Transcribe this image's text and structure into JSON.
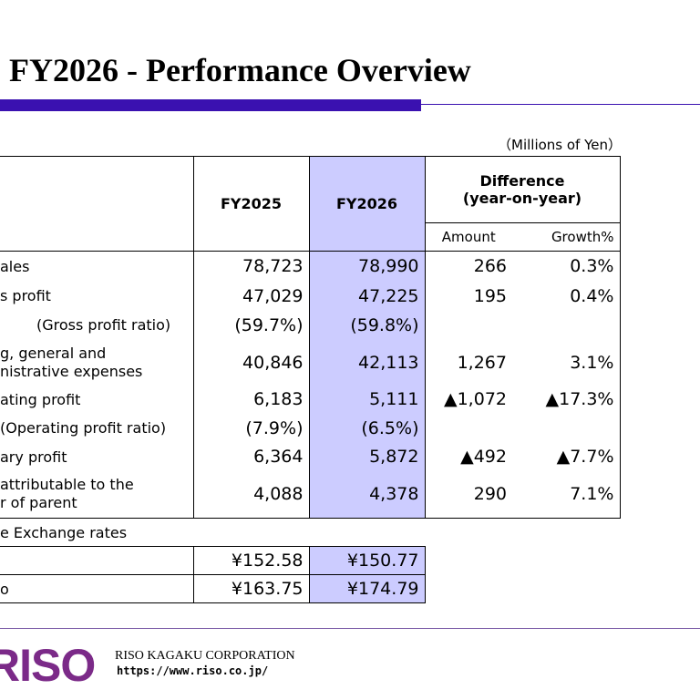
{
  "title": "FY2026 - Performance Overview",
  "units": "（Millions of Yen）",
  "header": {
    "col_fy2025": "FY2025",
    "col_fy2026": "FY2026",
    "col_diff_line1": "Difference",
    "col_diff_line2": "(year-on-year)",
    "col_amount": "Amount",
    "col_growth": "Growth%"
  },
  "rows": [
    {
      "label": "ales",
      "fy2025": "78,723",
      "fy2026": "78,990",
      "amount": "266",
      "growth": "0.3%"
    },
    {
      "label": "s profit",
      "fy2025": "47,029",
      "fy2026": "47,225",
      "amount": "195",
      "growth": "0.4%"
    },
    {
      "label": "(Gross profit ratio)",
      "fy2025": "(59.7%)",
      "fy2026": "(59.8%)",
      "amount": "",
      "growth": ""
    },
    {
      "label_line1": "g, general and",
      "label_line2": "nistrative expenses",
      "fy2025": "40,846",
      "fy2026": "42,113",
      "amount": "1,267",
      "growth": "3.1%"
    },
    {
      "label": "ating profit",
      "fy2025": "6,183",
      "fy2026": "5,111",
      "amount": "▲1,072",
      "growth": "▲17.3%"
    },
    {
      "label": "(Operating profit ratio)",
      "fy2025": "(7.9%)",
      "fy2026": "(6.5%)",
      "amount": "",
      "growth": ""
    },
    {
      "label": "ary profit",
      "fy2025": "6,364",
      "fy2026": "5,872",
      "amount": "▲492",
      "growth": "▲7.7%"
    },
    {
      "label_line1": "attributable to the",
      "label_line2": "r of parent",
      "fy2025": "4,088",
      "fy2026": "4,378",
      "amount": "290",
      "growth": "7.1%"
    }
  ],
  "fx_title": "e Exchange rates",
  "fx_rows": [
    {
      "label": "",
      "fy2025": "¥152.58",
      "fy2026": "¥150.77"
    },
    {
      "label": "o",
      "fy2025": "¥163.75",
      "fy2026": "¥174.79"
    }
  ],
  "footer": {
    "logo": "RISO",
    "company": "RISO KAGAKU CORPORATION",
    "url": "https://www.riso.co.jp/"
  },
  "colors": {
    "accent_bar": "#3a11b0",
    "highlight_column": "#ccccff",
    "logo": "#7b2a88"
  }
}
